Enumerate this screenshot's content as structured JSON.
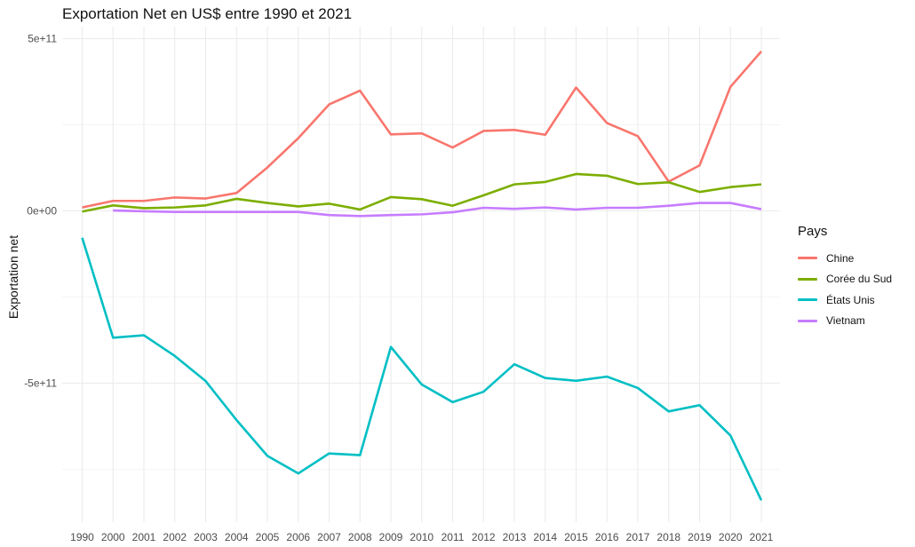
{
  "chart_data": {
    "type": "line",
    "title": "Exportation Net en US$ entre 1990 et 2021",
    "xlabel": "",
    "ylabel": "Exportation net",
    "categories": [
      "1990",
      "2000",
      "2001",
      "2002",
      "2003",
      "2004",
      "2005",
      "2006",
      "2007",
      "2008",
      "2009",
      "2010",
      "2011",
      "2012",
      "2013",
      "2014",
      "2015",
      "2016",
      "2017",
      "2018",
      "2019",
      "2020",
      "2021"
    ],
    "y_ticks": [
      {
        "value": 500000000000,
        "label": "5e+11"
      },
      {
        "value": 0,
        "label": "0e+00"
      },
      {
        "value": -500000000000,
        "label": "-5e+11"
      }
    ],
    "ylim": [
      -840000000000,
      460000000000
    ],
    "grid": true,
    "legend": {
      "title": "Pays",
      "position": "right"
    },
    "series": [
      {
        "name": "Chine",
        "color": "#F8766D",
        "values": [
          10000000000.0,
          29000000000.0,
          29000000000.0,
          39000000000.0,
          36000000000.0,
          52000000000.0,
          126000000000.0,
          211000000000.0,
          309000000000.0,
          349000000000.0,
          222000000000.0,
          225000000000.0,
          184000000000.0,
          232000000000.0,
          235000000000.0,
          221000000000.0,
          358000000000.0,
          255000000000.0,
          217000000000.0,
          85000000000.0,
          132000000000.0,
          360000000000.0,
          463000000000.0
        ]
      },
      {
        "name": "Corée du Sud",
        "color": "#7CAE00",
        "values": [
          -2000000000.0,
          16000000000.0,
          8000000000.0,
          10000000000.0,
          16000000000.0,
          35000000000.0,
          23000000000.0,
          13000000000.0,
          21000000000.0,
          4000000000.0,
          40000000000.0,
          34000000000.0,
          15000000000.0,
          45000000000.0,
          77000000000.0,
          84000000000.0,
          107000000000.0,
          102000000000.0,
          78000000000.0,
          83000000000.0,
          55000000000.0,
          69000000000.0,
          77000000000.0
        ]
      },
      {
        "name": "États Unis",
        "color": "#00BFC4",
        "values": [
          -78000000000.0,
          -368000000000.0,
          -361000000000.0,
          -421000000000.0,
          -494000000000.0,
          -607000000000.0,
          -711000000000.0,
          -762000000000.0,
          -704000000000.0,
          -709000000000.0,
          -395000000000.0,
          -504000000000.0,
          -555000000000.0,
          -525000000000.0,
          -445000000000.0,
          -485000000000.0,
          -493000000000.0,
          -481000000000.0,
          -514000000000.0,
          -582000000000.0,
          -564000000000.0,
          -652000000000.0,
          -840000000000.0
        ]
      },
      {
        "name": "Vietnam",
        "color": "#C77CFF",
        "values": [
          null,
          1000000000.0,
          -1000000000.0,
          -3000000000.0,
          -3000000000.0,
          -3000000000.0,
          -3000000000.0,
          -3000000000.0,
          -12000000000.0,
          -15000000000.0,
          -12000000000.0,
          -10000000000.0,
          -4000000000.0,
          9000000000.0,
          6000000000.0,
          10000000000.0,
          4000000000.0,
          9000000000.0,
          9000000000.0,
          15000000000.0,
          23000000000.0,
          23000000000.0,
          5000000000.0
        ]
      }
    ]
  }
}
